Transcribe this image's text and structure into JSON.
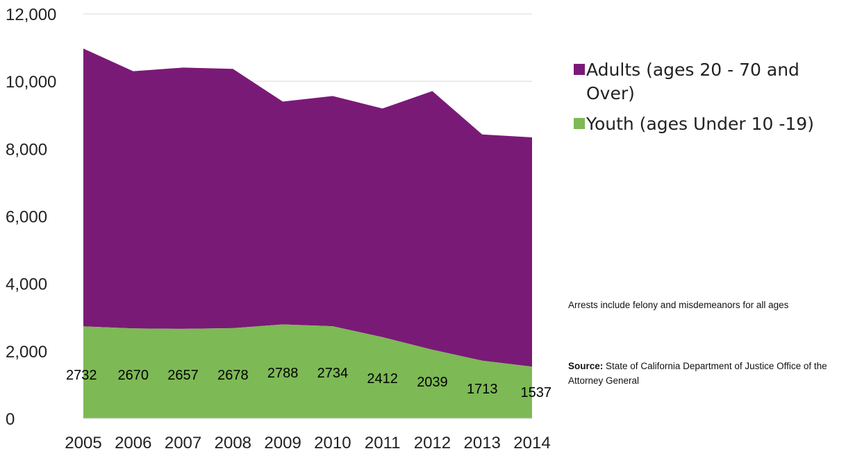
{
  "chart_data": {
    "type": "area",
    "stacked": true,
    "categories": [
      "2005",
      "2006",
      "2007",
      "2008",
      "2009",
      "2010",
      "2011",
      "2012",
      "2013",
      "2014"
    ],
    "series": [
      {
        "name": "Youth (ages Under 10 -19)",
        "color": "#7DB955",
        "values": [
          2732,
          2670,
          2657,
          2678,
          2788,
          2734,
          2412,
          2039,
          1713,
          1537
        ]
      },
      {
        "name": "Adults (ages 20 - 70 and Over)",
        "color": "#7A1A77",
        "values": [
          8240,
          7630,
          7750,
          7690,
          6610,
          6830,
          6780,
          7670,
          6710,
          6800
        ]
      }
    ],
    "data_labels": [
      "2732",
      "2670",
      "2657",
      "2678",
      "2788",
      "2734",
      "2412",
      "2039",
      "1713",
      "1537"
    ],
    "y_ticks": [
      "0",
      "2,000",
      "4,000",
      "6,000",
      "8,000",
      "10,000",
      "12,000"
    ],
    "ylim": [
      0,
      12000
    ],
    "grid": true,
    "legend_position": "right",
    "title": "",
    "xlabel": "",
    "ylabel": ""
  },
  "legend": {
    "adults_label": "Adults (ages 20 - 70 and Over)",
    "youth_label": "Youth (ages Under 10 -19)"
  },
  "notes": {
    "arrests_note": "Arrests include felony and misdemeanors for all ages",
    "source_label": "Source:",
    "source_text": "State of California Department of Justice Office of the Attorney General"
  }
}
